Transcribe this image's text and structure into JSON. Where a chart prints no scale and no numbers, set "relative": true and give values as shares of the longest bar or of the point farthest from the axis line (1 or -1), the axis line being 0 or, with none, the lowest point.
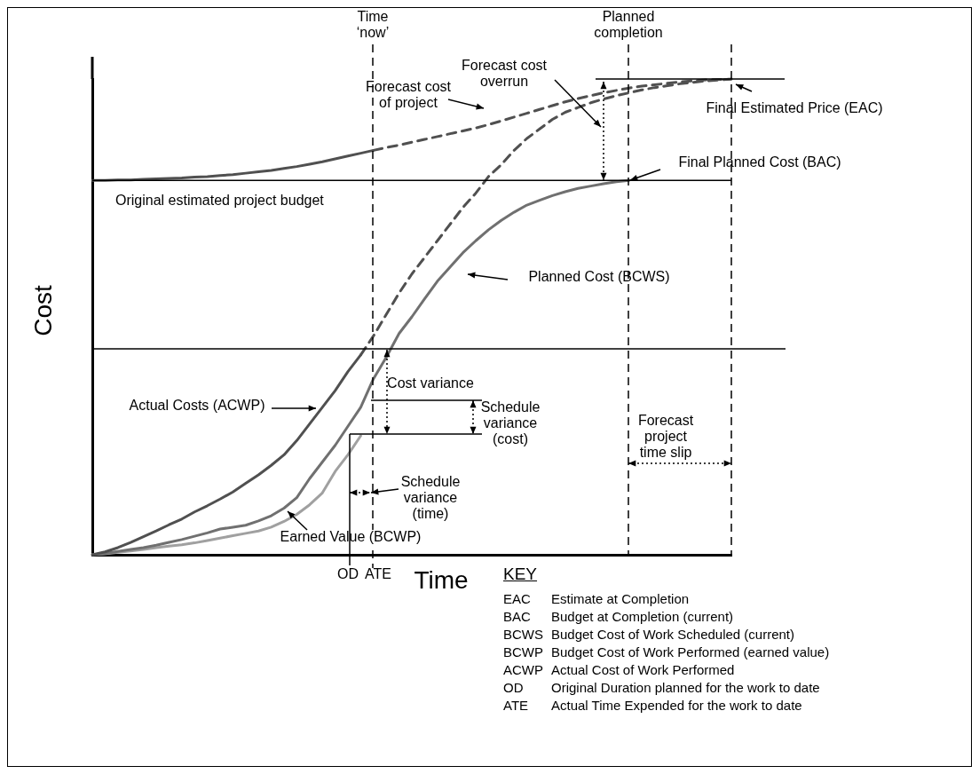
{
  "chart_data": {
    "type": "line",
    "relative": true,
    "marker": "none",
    "line_style": "solid",
    "legend": false,
    "tick_labels": false,
    "xlabel": "Time",
    "ylabel": "Cost",
    "categories": [
      null,
      null,
      null,
      null,
      null,
      null,
      null,
      null,
      null,
      null,
      null,
      null,
      null,
      null,
      null,
      null,
      null,
      null,
      null,
      null,
      null,
      null,
      null,
      null,
      null,
      null,
      null,
      null,
      null,
      null,
      null,
      null,
      null,
      null,
      null,
      null,
      null,
      null,
      null,
      null,
      null,
      null,
      null,
      null,
      null,
      null,
      null,
      null,
      null,
      null,
      null
    ],
    "series": [
      {
        "color": "#505050",
        "values": [
          0,
          0.006,
          0.015,
          0.026,
          0.038,
          0.05,
          0.063,
          0.075,
          0.09,
          0.103,
          0.117,
          0.132,
          0.15,
          0.168,
          0.188,
          0.21,
          0.24,
          0.275,
          0.31,
          0.345,
          0.385,
          0.42,
          null,
          null,
          null,
          null,
          null,
          null,
          null,
          null,
          null,
          null,
          null,
          null,
          null,
          null,
          null,
          null,
          null,
          null,
          null,
          null,
          null,
          null,
          null,
          null,
          null,
          null,
          null,
          null,
          null
        ]
      },
      {
        "color": "#505050",
        "line_style": "dashed",
        "values": [
          null,
          null,
          null,
          null,
          null,
          null,
          null,
          null,
          null,
          null,
          null,
          null,
          null,
          null,
          null,
          null,
          null,
          null,
          null,
          null,
          null,
          0.42,
          0.46,
          0.505,
          0.55,
          0.59,
          0.625,
          0.66,
          0.695,
          0.73,
          0.76,
          0.795,
          0.82,
          0.85,
          0.875,
          0.895,
          0.915,
          0.93,
          0.94,
          0.95,
          0.958,
          0.965,
          0.971,
          0.977,
          0.982,
          0.986,
          0.99,
          0.993,
          0.996,
          0.998,
          1
        ]
      },
      {
        "color": "#707070",
        "values": [
          0,
          0.003,
          0.007,
          0.011,
          0.015,
          0.02,
          0.026,
          0.032,
          0.039,
          0.046,
          0.054,
          0.058,
          0.062,
          0.071,
          0.082,
          0.098,
          0.12,
          0.16,
          0.195,
          0.23,
          0.27,
          0.31,
          0.37,
          0.415,
          0.465,
          0.5,
          0.538,
          0.575,
          0.605,
          0.635,
          0.66,
          0.683,
          0.703,
          0.72,
          0.735,
          0.745,
          0.755,
          0.763,
          0.77,
          0.775,
          0.78,
          0.784,
          0.787,
          null,
          null,
          null,
          null,
          null,
          null,
          null,
          null
        ]
      },
      {
        "color": "#a0a0a0",
        "values": [
          0,
          0.002,
          0.005,
          0.008,
          0.011,
          0.015,
          0.018,
          0.021,
          0.025,
          0.03,
          0.035,
          0.04,
          0.045,
          0.05,
          0.058,
          0.07,
          0.085,
          0.105,
          0.13,
          0.175,
          0.21,
          0.25,
          null,
          null,
          null,
          null,
          null,
          null,
          null,
          null,
          null,
          null,
          null,
          null,
          null,
          null,
          null,
          null,
          null,
          null,
          null,
          null,
          null,
          null,
          null,
          null,
          null,
          null,
          null,
          null,
          null
        ]
      },
      {
        "color": "#505050",
        "values": [
          0.787,
          0.787,
          0.788,
          0.788,
          0.789,
          0.79,
          0.791,
          0.792,
          0.794,
          0.795,
          0.797,
          0.799,
          0.802,
          0.805,
          0.808,
          0.812,
          0.816,
          0.821,
          0.826,
          0.832,
          0.838,
          0.844,
          0.85,
          null,
          null,
          null,
          null,
          null,
          null,
          null,
          null,
          null,
          null,
          null,
          null,
          null,
          null,
          null,
          null,
          null,
          null,
          null,
          null,
          null,
          null,
          null,
          null,
          null,
          null,
          null,
          null
        ]
      },
      {
        "color": "#505050",
        "line_style": "dashed",
        "values": [
          null,
          null,
          null,
          null,
          null,
          null,
          null,
          null,
          null,
          null,
          null,
          null,
          null,
          null,
          null,
          null,
          null,
          null,
          null,
          null,
          null,
          null,
          0.85,
          0.856,
          0.861,
          0.867,
          0.873,
          0.879,
          0.885,
          0.891,
          0.897,
          0.904,
          0.912,
          0.92,
          0.928,
          0.936,
          0.944,
          0.952,
          0.959,
          0.965,
          0.971,
          0.976,
          0.981,
          0.985,
          0.988,
          0.991,
          0.994,
          0.996,
          0.998,
          0.999,
          1
        ]
      }
    ],
    "ref_lines": [
      {
        "axis": "y",
        "value": 0.787,
        "label": "Original estimated project budget"
      },
      {
        "axis": "y",
        "value": 0.433
      },
      {
        "axis": "y",
        "value": 1
      }
    ],
    "annotations": [
      "Time ‘now’",
      "Planned completion",
      "Forecast cost of project",
      "Forecast cost overrun",
      "Final Estimated Price (EAC)",
      "Final Planned Cost (BAC)",
      "Planned Cost (BCWS)",
      "Cost variance",
      "Schedule variance (cost)",
      "Schedule variance (time)",
      "Actual Costs (ACWP)",
      "Earned Value (BCWP)",
      "Forecast project time slip",
      "OD",
      "ATE",
      "KEY",
      "EAC Estimate at Completion",
      "BAC Budget at Completion (current)",
      "BCWS Budget Cost of Work Scheduled (current)",
      "BCWP Budget Cost of Work Performed (earned value)",
      "ACWP Actual Cost of Work Performed",
      "OD Original Duration planned for the work to date",
      "ATE Actual Time Expended for the work to date"
    ]
  }
}
